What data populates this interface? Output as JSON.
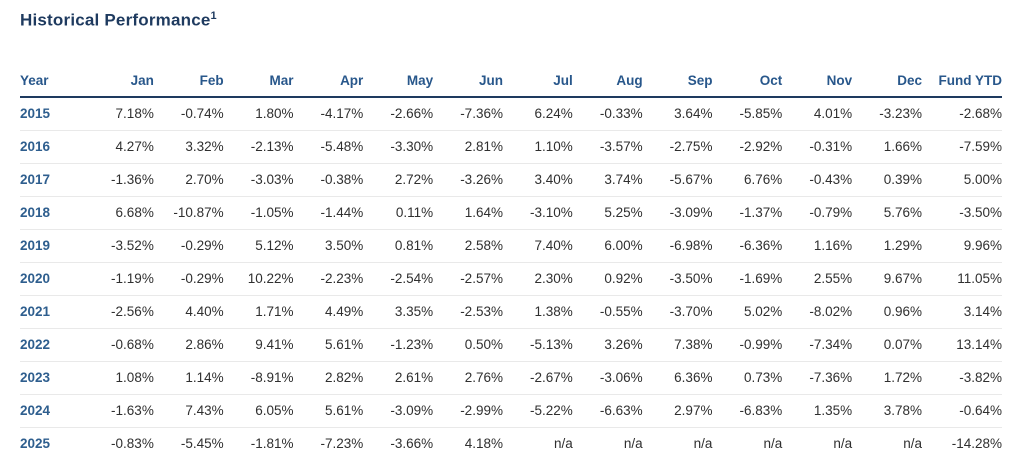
{
  "section": {
    "title": "Historical Performance",
    "footnote_marker": "1"
  },
  "colors": {
    "title_navy": "#1e3a5f",
    "header_blue": "#28578b",
    "year_blue": "#2e5e8e",
    "value_text": "#2f2f2f",
    "header_underline": "#1e3a5f",
    "row_divider": "#e9e9e9",
    "background": "#ffffff"
  },
  "table": {
    "columns": [
      "Year",
      "Jan",
      "Feb",
      "Mar",
      "Apr",
      "May",
      "Jun",
      "Jul",
      "Aug",
      "Sep",
      "Oct",
      "Nov",
      "Dec",
      "Fund YTD"
    ],
    "rows": [
      {
        "year": "2015",
        "values": [
          "7.18%",
          "-0.74%",
          "1.80%",
          "-4.17%",
          "-2.66%",
          "-7.36%",
          "6.24%",
          "-0.33%",
          "3.64%",
          "-5.85%",
          "4.01%",
          "-3.23%",
          "-2.68%"
        ]
      },
      {
        "year": "2016",
        "values": [
          "4.27%",
          "3.32%",
          "-2.13%",
          "-5.48%",
          "-3.30%",
          "2.81%",
          "1.10%",
          "-3.57%",
          "-2.75%",
          "-2.92%",
          "-0.31%",
          "1.66%",
          "-7.59%"
        ]
      },
      {
        "year": "2017",
        "values": [
          "-1.36%",
          "2.70%",
          "-3.03%",
          "-0.38%",
          "2.72%",
          "-3.26%",
          "3.40%",
          "3.74%",
          "-5.67%",
          "6.76%",
          "-0.43%",
          "0.39%",
          "5.00%"
        ]
      },
      {
        "year": "2018",
        "values": [
          "6.68%",
          "-10.87%",
          "-1.05%",
          "-1.44%",
          "0.11%",
          "1.64%",
          "-3.10%",
          "5.25%",
          "-3.09%",
          "-1.37%",
          "-0.79%",
          "5.76%",
          "-3.50%"
        ]
      },
      {
        "year": "2019",
        "values": [
          "-3.52%",
          "-0.29%",
          "5.12%",
          "3.50%",
          "0.81%",
          "2.58%",
          "7.40%",
          "6.00%",
          "-6.98%",
          "-6.36%",
          "1.16%",
          "1.29%",
          "9.96%"
        ]
      },
      {
        "year": "2020",
        "values": [
          "-1.19%",
          "-0.29%",
          "10.22%",
          "-2.23%",
          "-2.54%",
          "-2.57%",
          "2.30%",
          "0.92%",
          "-3.50%",
          "-1.69%",
          "2.55%",
          "9.67%",
          "11.05%"
        ]
      },
      {
        "year": "2021",
        "values": [
          "-2.56%",
          "4.40%",
          "1.71%",
          "4.49%",
          "3.35%",
          "-2.53%",
          "1.38%",
          "-0.55%",
          "-3.70%",
          "5.02%",
          "-8.02%",
          "0.96%",
          "3.14%"
        ]
      },
      {
        "year": "2022",
        "values": [
          "-0.68%",
          "2.86%",
          "9.41%",
          "5.61%",
          "-1.23%",
          "0.50%",
          "-5.13%",
          "3.26%",
          "7.38%",
          "-0.99%",
          "-7.34%",
          "0.07%",
          "13.14%"
        ]
      },
      {
        "year": "2023",
        "values": [
          "1.08%",
          "1.14%",
          "-8.91%",
          "2.82%",
          "2.61%",
          "2.76%",
          "-2.67%",
          "-3.06%",
          "6.36%",
          "0.73%",
          "-7.36%",
          "1.72%",
          "-3.82%"
        ]
      },
      {
        "year": "2024",
        "values": [
          "-1.63%",
          "7.43%",
          "6.05%",
          "5.61%",
          "-3.09%",
          "-2.99%",
          "-5.22%",
          "-6.63%",
          "2.97%",
          "-6.83%",
          "1.35%",
          "3.78%",
          "-0.64%"
        ]
      },
      {
        "year": "2025",
        "values": [
          "-0.83%",
          "-5.45%",
          "-1.81%",
          "-7.23%",
          "-3.66%",
          "4.18%",
          "n/a",
          "n/a",
          "n/a",
          "n/a",
          "n/a",
          "n/a",
          "-14.28%"
        ]
      }
    ]
  }
}
